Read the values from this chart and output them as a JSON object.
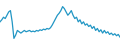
{
  "values": [
    55,
    58,
    62,
    60,
    65,
    70,
    72,
    55,
    30,
    35,
    42,
    40,
    38,
    40,
    42,
    40,
    41,
    42,
    40,
    41,
    40,
    42,
    41,
    43,
    42,
    44,
    43,
    45,
    44,
    46,
    50,
    55,
    60,
    65,
    68,
    72,
    78,
    75,
    70,
    65,
    68,
    72,
    65,
    60,
    62,
    55,
    58,
    52,
    55,
    50,
    52,
    48,
    50,
    45,
    48,
    42,
    45,
    40,
    43,
    38,
    42,
    38,
    40,
    36,
    38,
    35,
    37,
    34,
    36,
    32
  ],
  "line_color": "#2196c4",
  "linewidth": 0.9,
  "background_color": "#ffffff",
  "ylim_min": 20,
  "ylim_max": 88
}
